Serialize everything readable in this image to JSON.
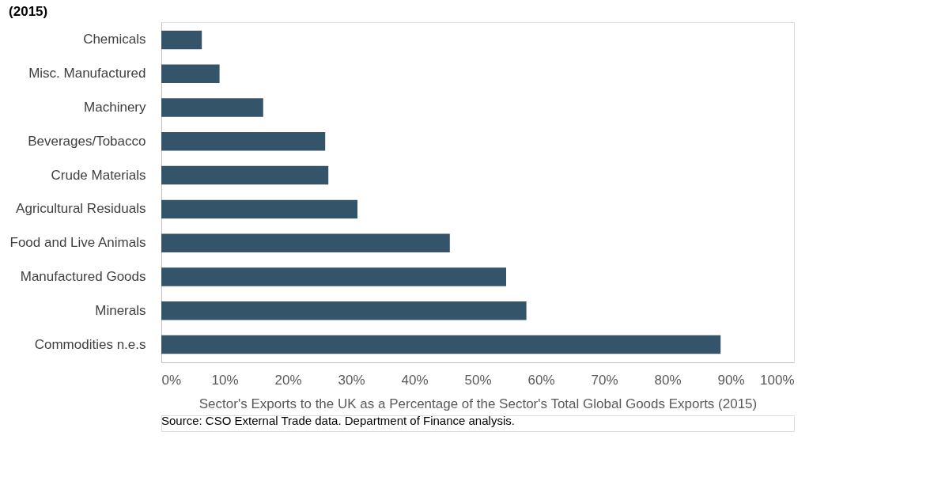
{
  "chart_data": {
    "type": "bar",
    "orientation": "horizontal",
    "title": "(2015)",
    "categories": [
      "Chemicals",
      "Misc. Manufactured",
      "Machinery",
      "Beverages/Tobacco",
      "Crude Materials",
      "Agricultural Residuals",
      "Food and Live Animals",
      "Manufactured Goods",
      "Minerals",
      "Commodities n.e.s"
    ],
    "values": [
      6.4,
      9.2,
      16.1,
      25.9,
      26.4,
      31.0,
      45.6,
      54.5,
      57.7,
      88.4
    ],
    "color": "#335469",
    "xlim": [
      0,
      100
    ],
    "xticks": [
      {
        "value": 0,
        "label": "0%"
      },
      {
        "value": 10,
        "label": "10%"
      },
      {
        "value": 20,
        "label": "20%"
      },
      {
        "value": 30,
        "label": "30%"
      },
      {
        "value": 40,
        "label": "40%"
      },
      {
        "value": 50,
        "label": "50%"
      },
      {
        "value": 60,
        "label": "60%"
      },
      {
        "value": 70,
        "label": "70%"
      },
      {
        "value": 80,
        "label": "80%"
      },
      {
        "value": 90,
        "label": "90%"
      },
      {
        "value": 100,
        "label": "100%"
      }
    ],
    "xlabel": "Sector's Exports to the UK as a Percentage of the Sector's Total Global Goods Exports (2015)",
    "grid": false,
    "annotations": [
      "Source: CSO External Trade data. Department of Finance analysis."
    ]
  }
}
